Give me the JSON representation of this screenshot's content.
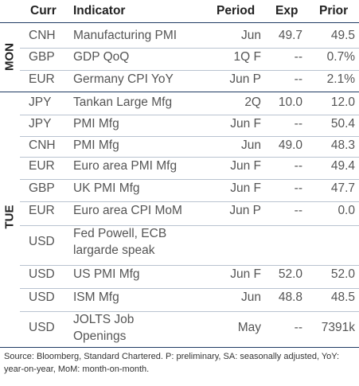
{
  "header": {
    "curr": "Curr",
    "indicator": "Indicator",
    "period": "Period",
    "exp": "Exp",
    "prior": "Prior"
  },
  "days": {
    "mon": "MON",
    "tue": "TUE"
  },
  "rows": [
    {
      "curr": "CNH",
      "indicator": "Manufacturing PMI",
      "period": "Jun",
      "exp": "49.7",
      "prior": "49.5"
    },
    {
      "curr": "GBP",
      "indicator": "GDP QoQ",
      "period": "1Q F",
      "exp": "--",
      "prior": "0.7%"
    },
    {
      "curr": "EUR",
      "indicator": "Germany CPI YoY",
      "period": "Jun P",
      "exp": "--",
      "prior": "2.1%"
    },
    {
      "curr": "JPY",
      "indicator": "Tankan Large Mfg",
      "period": "2Q",
      "exp": "10.0",
      "prior": "12.0"
    },
    {
      "curr": "JPY",
      "indicator": "PMI Mfg",
      "period": "Jun F",
      "exp": "--",
      "prior": "50.4"
    },
    {
      "curr": "CNH",
      "indicator": "PMI Mfg",
      "period": "Jun",
      "exp": "49.0",
      "prior": "48.3"
    },
    {
      "curr": "EUR",
      "indicator": "Euro area PMI Mfg",
      "period": "Jun F",
      "exp": "--",
      "prior": "49.4"
    },
    {
      "curr": "GBP",
      "indicator": "UK PMI Mfg",
      "period": "Jun F",
      "exp": "--",
      "prior": "47.7"
    },
    {
      "curr": "EUR",
      "indicator": "Euro area CPI MoM",
      "period": "Jun P",
      "exp": "--",
      "prior": "0.0"
    },
    {
      "curr": "USD",
      "indicator_line1": "Fed Powell, ECB",
      "indicator_line2": "largarde speak",
      "period": "",
      "exp": "",
      "prior": ""
    },
    {
      "curr": "USD",
      "indicator": "US PMI Mfg",
      "period": "Jun F",
      "exp": "52.0",
      "prior": "52.0"
    },
    {
      "curr": "USD",
      "indicator": "ISM Mfg",
      "period": "Jun",
      "exp": "48.8",
      "prior": "48.5"
    },
    {
      "curr": "USD",
      "indicator_line1": "JOLTS Job",
      "indicator_line2": "Openings",
      "period": "May",
      "exp": "--",
      "prior": "7391k"
    }
  ],
  "footer": "Source: Bloomberg, Standard Chartered. P: preliminary, SA: seasonally adjusted, YoY: year-on-year, MoM: month-on-month."
}
